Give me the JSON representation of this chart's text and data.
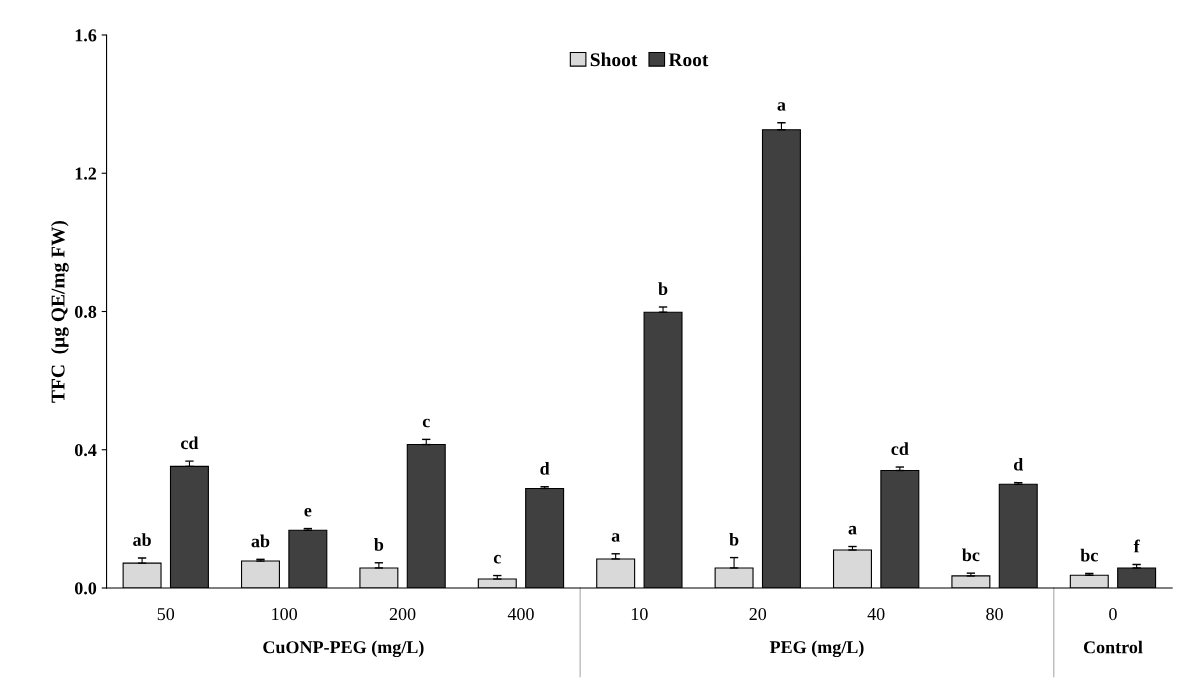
{
  "chart_data": {
    "type": "bar",
    "ylabel": "TFC  (µg QE/mg FW)",
    "categories": [
      "50",
      "100",
      "200",
      "400",
      "10",
      "20",
      "40",
      "80",
      "0"
    ],
    "series": [
      {
        "name": "Shoot",
        "color": "#d9d9d9",
        "values": [
          0.072,
          0.078,
          0.058,
          0.026,
          0.084,
          0.058,
          0.11,
          0.035,
          0.037
        ],
        "errors": [
          0.015,
          0.005,
          0.015,
          0.01,
          0.015,
          0.03,
          0.01,
          0.008,
          0.005
        ],
        "value_labels": [
          "ab",
          "ab",
          "b",
          "c",
          "a",
          "b",
          "a",
          "bc",
          "bc"
        ]
      },
      {
        "name": "Root",
        "color": "#404040",
        "values": [
          0.352,
          0.167,
          0.415,
          0.288,
          0.798,
          1.326,
          0.34,
          0.3,
          0.058
        ],
        "errors": [
          0.015,
          0.005,
          0.015,
          0.005,
          0.015,
          0.02,
          0.01,
          0.005,
          0.01
        ],
        "value_labels": [
          "cd",
          "e",
          "c",
          "d",
          "b",
          "a",
          "cd",
          "d",
          "f"
        ]
      }
    ],
    "annotations": [
      "CuONP-PEG (mg/L)",
      "PEG (mg/L)",
      "Control"
    ],
    "ylim": [
      0,
      1.6
    ],
    "yticks": [
      {
        "value": 0,
        "label": "0.0"
      },
      {
        "value": 0.4,
        "label": "0.4"
      },
      {
        "value": 0.8,
        "label": "0.8"
      },
      {
        "value": 1.2,
        "label": "1.2"
      },
      {
        "value": 1.6,
        "label": "1.6"
      }
    ],
    "legend": "top",
    "grid": false
  }
}
